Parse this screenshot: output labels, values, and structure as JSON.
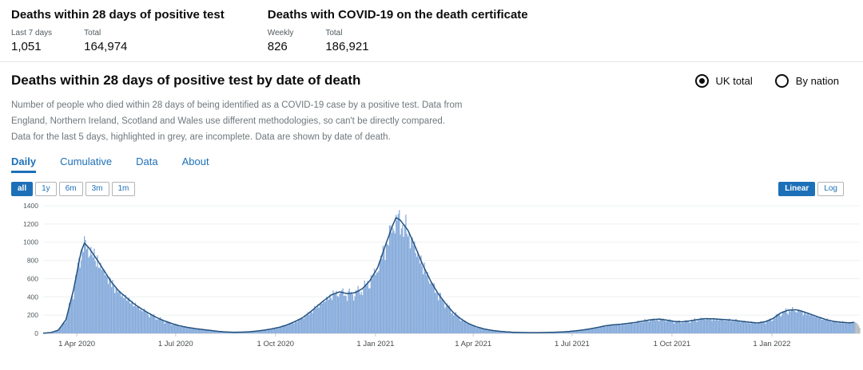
{
  "header": {
    "cards": [
      {
        "title": "Deaths within 28 days of positive test",
        "stats": [
          {
            "label": "Last 7 days",
            "value": "1,051"
          },
          {
            "label": "Total",
            "value": "164,974"
          }
        ]
      },
      {
        "title": "Deaths with COVID-19 on the death certificate",
        "stats": [
          {
            "label": "Weekly",
            "value": "826"
          },
          {
            "label": "Total",
            "value": "186,921"
          }
        ]
      }
    ]
  },
  "section": {
    "title": "Deaths within 28 days of positive test by date of death",
    "description": "Number of people who died within 28 days of being identified as a COVID-19 case by a positive test. Data from England, Northern Ireland, Scotland and Wales use different methodologies, so can't be directly compared. Data for the last 5 days, highlighted in grey, are incomplete. Data are shown by date of death.",
    "radios": [
      {
        "label": "UK total",
        "selected": true
      },
      {
        "label": "By nation",
        "selected": false
      }
    ],
    "tabs": [
      {
        "label": "Daily",
        "active": true
      },
      {
        "label": "Cumulative",
        "active": false
      },
      {
        "label": "Data",
        "active": false
      },
      {
        "label": "About",
        "active": false
      }
    ],
    "zoom_buttons": [
      {
        "label": "all",
        "active": true
      },
      {
        "label": "1y",
        "active": false
      },
      {
        "label": "6m",
        "active": false
      },
      {
        "label": "3m",
        "active": false
      },
      {
        "label": "1m",
        "active": false
      }
    ],
    "scale_buttons": [
      {
        "label": "Linear",
        "active": true
      },
      {
        "label": "Log",
        "active": false
      }
    ]
  },
  "colors": {
    "accent": "#1d70b8",
    "text": "#0b0c0c",
    "muted": "#6f777b"
  },
  "chart_data": {
    "type": "bar",
    "title": "Deaths within 28 days of positive test by date of death",
    "xlabel": "",
    "ylabel": "",
    "ylim": [
      0,
      1400
    ],
    "y_ticks": [
      0,
      200,
      400,
      600,
      800,
      1000,
      1200,
      1400
    ],
    "grid": true,
    "legend": "none",
    "bar_color": "#86abdb",
    "line_color": "#24527f",
    "incomplete_color": "#b6babd",
    "incomplete_last_days": 5,
    "x_ticks": [
      {
        "date": "2020-04-01",
        "label": "1 Apr 2020"
      },
      {
        "date": "2020-07-01",
        "label": "1 Jul 2020"
      },
      {
        "date": "2020-10-01",
        "label": "1 Oct 2020"
      },
      {
        "date": "2021-01-01",
        "label": "1 Jan 2021"
      },
      {
        "date": "2021-04-01",
        "label": "1 Apr 2021"
      },
      {
        "date": "2021-07-01",
        "label": "1 Jul 2021"
      },
      {
        "date": "2021-10-01",
        "label": "1 Oct 2021"
      },
      {
        "date": "2022-01-01",
        "label": "1 Jan 2022"
      }
    ],
    "points": [
      [
        "2020-03-01",
        2
      ],
      [
        "2020-03-08",
        8
      ],
      [
        "2020-03-15",
        35
      ],
      [
        "2020-03-22",
        150
      ],
      [
        "2020-03-29",
        480
      ],
      [
        "2020-04-05",
        900
      ],
      [
        "2020-04-08",
        990
      ],
      [
        "2020-04-12",
        940
      ],
      [
        "2020-04-19",
        820
      ],
      [
        "2020-04-26",
        690
      ],
      [
        "2020-05-03",
        560
      ],
      [
        "2020-05-10",
        460
      ],
      [
        "2020-05-17",
        390
      ],
      [
        "2020-05-24",
        320
      ],
      [
        "2020-05-31",
        265
      ],
      [
        "2020-06-07",
        215
      ],
      [
        "2020-06-14",
        170
      ],
      [
        "2020-06-21",
        135
      ],
      [
        "2020-06-28",
        105
      ],
      [
        "2020-07-05",
        82
      ],
      [
        "2020-07-12",
        65
      ],
      [
        "2020-07-19",
        52
      ],
      [
        "2020-07-26",
        42
      ],
      [
        "2020-08-02",
        32
      ],
      [
        "2020-08-09",
        22
      ],
      [
        "2020-08-16",
        15
      ],
      [
        "2020-08-23",
        12
      ],
      [
        "2020-08-30",
        13
      ],
      [
        "2020-09-06",
        16
      ],
      [
        "2020-09-13",
        24
      ],
      [
        "2020-09-20",
        34
      ],
      [
        "2020-09-27",
        48
      ],
      [
        "2020-10-04",
        65
      ],
      [
        "2020-10-11",
        90
      ],
      [
        "2020-10-18",
        125
      ],
      [
        "2020-10-25",
        165
      ],
      [
        "2020-11-01",
        225
      ],
      [
        "2020-11-08",
        295
      ],
      [
        "2020-11-15",
        365
      ],
      [
        "2020-11-22",
        425
      ],
      [
        "2020-11-29",
        455
      ],
      [
        "2020-12-06",
        435
      ],
      [
        "2020-12-13",
        445
      ],
      [
        "2020-12-20",
        490
      ],
      [
        "2020-12-27",
        580
      ],
      [
        "2021-01-03",
        720
      ],
      [
        "2021-01-10",
        960
      ],
      [
        "2021-01-17",
        1190
      ],
      [
        "2021-01-20",
        1270
      ],
      [
        "2021-01-24",
        1240
      ],
      [
        "2021-01-31",
        1130
      ],
      [
        "2021-02-07",
        940
      ],
      [
        "2021-02-14",
        740
      ],
      [
        "2021-02-21",
        570
      ],
      [
        "2021-02-28",
        430
      ],
      [
        "2021-03-07",
        320
      ],
      [
        "2021-03-14",
        225
      ],
      [
        "2021-03-21",
        155
      ],
      [
        "2021-03-28",
        105
      ],
      [
        "2021-04-04",
        72
      ],
      [
        "2021-04-11",
        48
      ],
      [
        "2021-04-18",
        33
      ],
      [
        "2021-04-25",
        23
      ],
      [
        "2021-05-02",
        16
      ],
      [
        "2021-05-09",
        11
      ],
      [
        "2021-05-16",
        9
      ],
      [
        "2021-05-23",
        8
      ],
      [
        "2021-05-30",
        8
      ],
      [
        "2021-06-06",
        9
      ],
      [
        "2021-06-13",
        11
      ],
      [
        "2021-06-20",
        14
      ],
      [
        "2021-06-27",
        19
      ],
      [
        "2021-07-04",
        27
      ],
      [
        "2021-07-11",
        37
      ],
      [
        "2021-07-18",
        50
      ],
      [
        "2021-07-25",
        66
      ],
      [
        "2021-08-01",
        83
      ],
      [
        "2021-08-08",
        94
      ],
      [
        "2021-08-15",
        100
      ],
      [
        "2021-08-22",
        110
      ],
      [
        "2021-08-29",
        121
      ],
      [
        "2021-09-05",
        136
      ],
      [
        "2021-09-12",
        150
      ],
      [
        "2021-09-19",
        156
      ],
      [
        "2021-09-26",
        146
      ],
      [
        "2021-10-03",
        131
      ],
      [
        "2021-10-10",
        126
      ],
      [
        "2021-10-17",
        136
      ],
      [
        "2021-10-24",
        150
      ],
      [
        "2021-10-31",
        161
      ],
      [
        "2021-11-07",
        160
      ],
      [
        "2021-11-14",
        154
      ],
      [
        "2021-11-21",
        149
      ],
      [
        "2021-11-28",
        141
      ],
      [
        "2021-12-05",
        131
      ],
      [
        "2021-12-12",
        121
      ],
      [
        "2021-12-19",
        114
      ],
      [
        "2021-12-26",
        128
      ],
      [
        "2022-01-02",
        162
      ],
      [
        "2022-01-09",
        222
      ],
      [
        "2022-01-16",
        254
      ],
      [
        "2022-01-23",
        259
      ],
      [
        "2022-01-30",
        238
      ],
      [
        "2022-02-06",
        208
      ],
      [
        "2022-02-13",
        178
      ],
      [
        "2022-02-20",
        150
      ],
      [
        "2022-02-27",
        131
      ],
      [
        "2022-03-06",
        121
      ],
      [
        "2022-03-13",
        116
      ],
      [
        "2022-03-20",
        121
      ],
      [
        "2022-03-23",
        118
      ]
    ]
  }
}
